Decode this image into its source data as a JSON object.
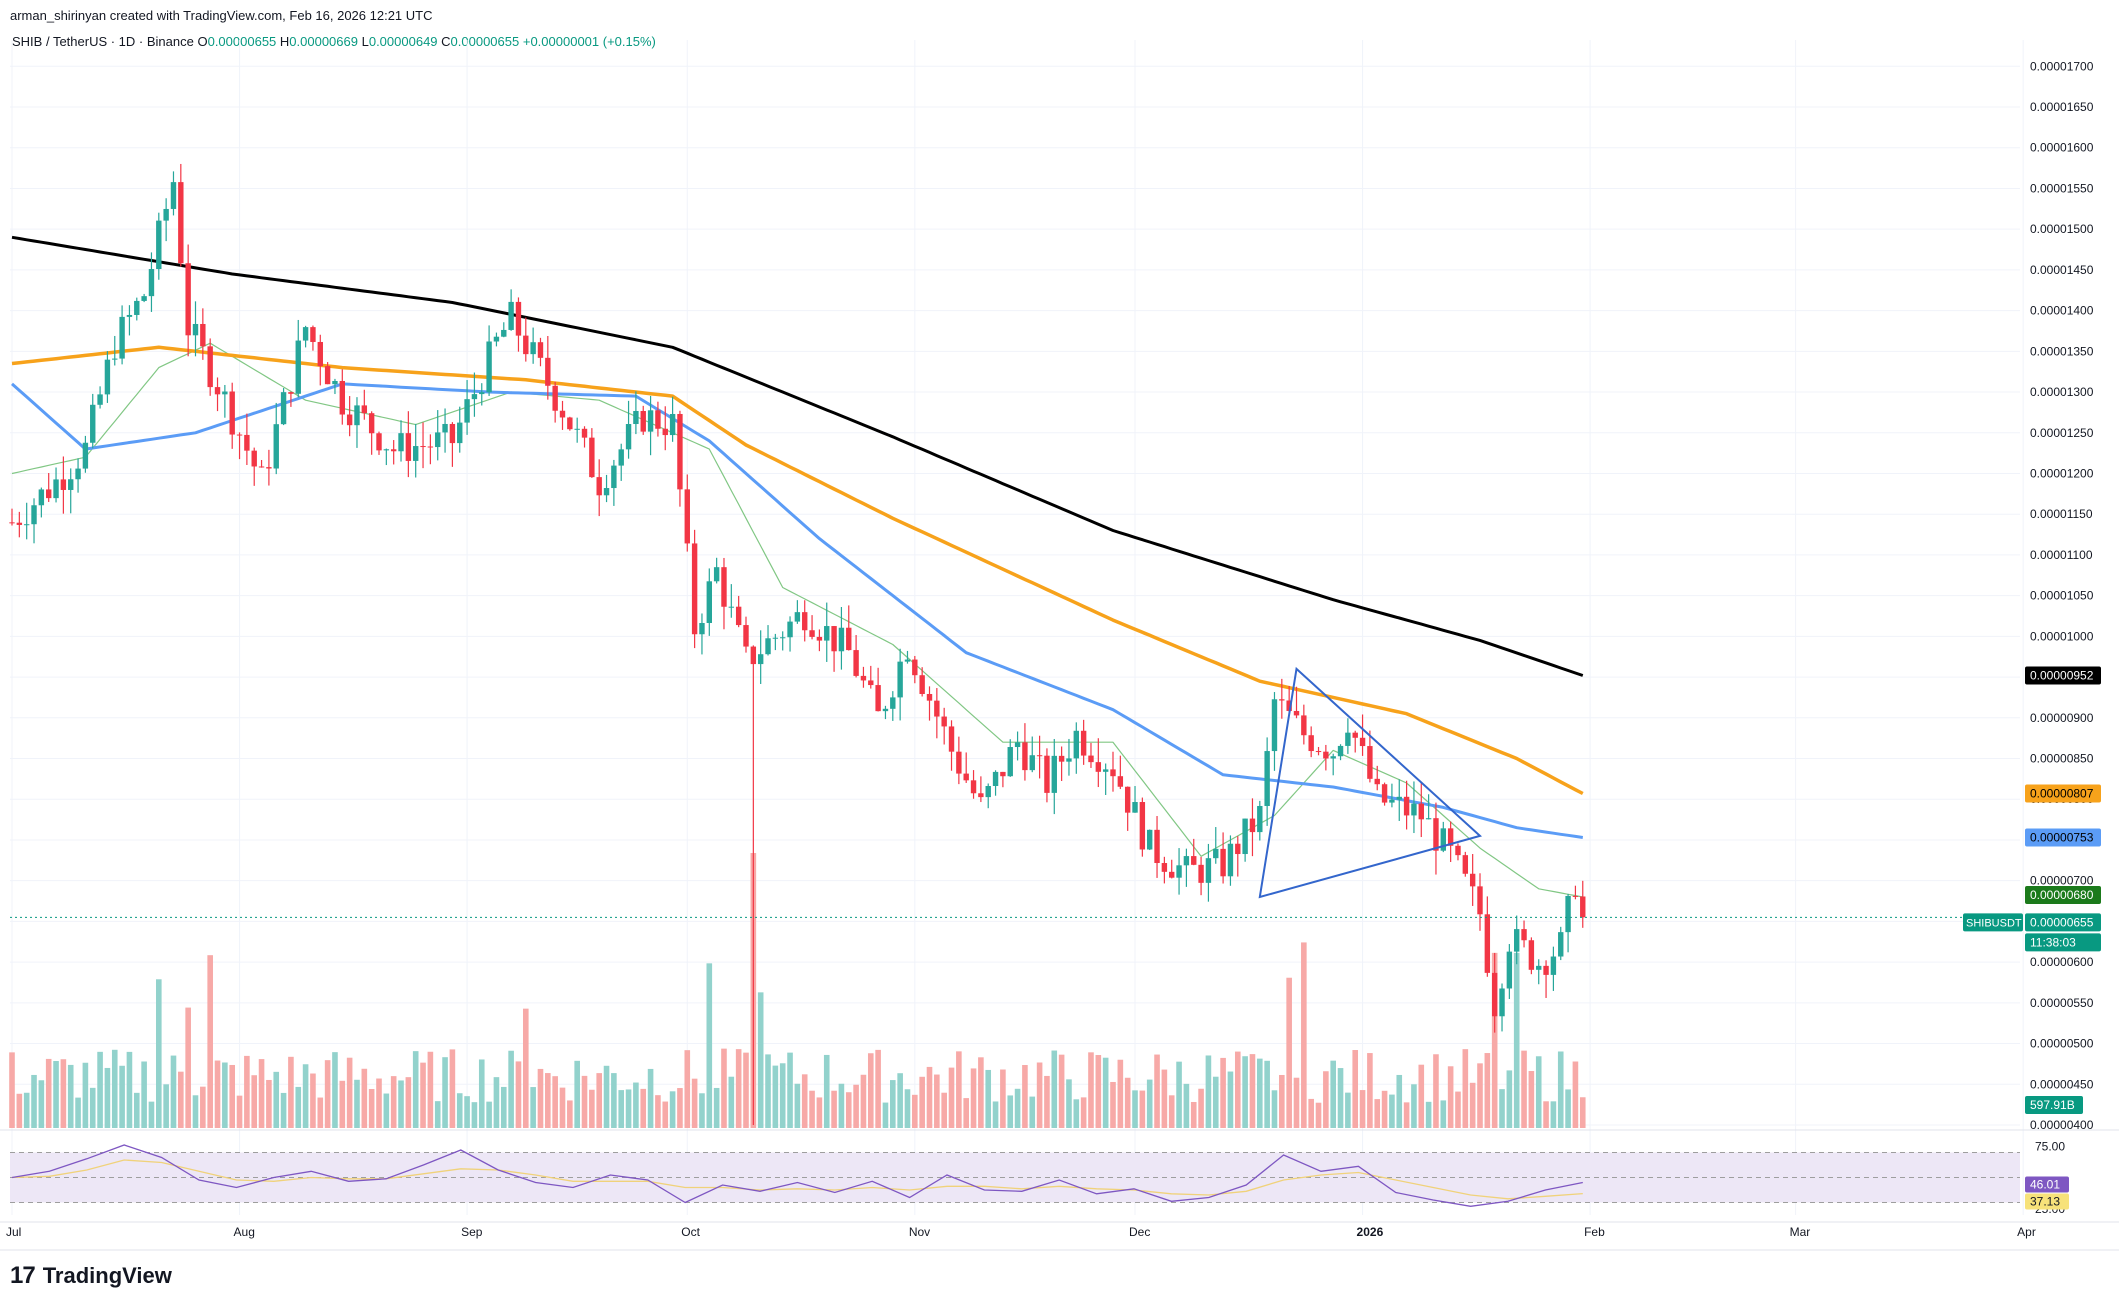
{
  "header": {
    "attribution": "arman_shirinyan created with TradingView.com, Feb 16, 2026 12:21 UTC",
    "symbol": "SHIB / TetherUS · 1D · Binance",
    "ohlc": {
      "open_label": "O",
      "open": "0.00000655",
      "high_label": "H",
      "high": "0.00000669",
      "low_label": "L",
      "low": "0.00000649",
      "close_label": "C",
      "close": "0.00000655",
      "change": "+0.00000001 (+0.15%)"
    }
  },
  "footer": {
    "logo_mark": "17",
    "logo_text": "TradingView"
  },
  "colors": {
    "up": "#089981",
    "up_soft": "#26a69a",
    "down": "#f23645",
    "vol_up": "#92d2cc",
    "vol_down": "#f7a9a7",
    "ma200": "#000000",
    "ma100": "#f7a21b",
    "ma50": "#5b9cf6",
    "ma20": "#81c784",
    "triangle": "#3366cc",
    "rsi": "#7e57c2",
    "rsi_ma": "#f0d27a",
    "rsi_band": "#ede7f6"
  },
  "chart_data": {
    "type": "candlestick",
    "title": "SHIB / TetherUS · 1D · Binance",
    "x_labels": [
      "Jul",
      "Aug",
      "Sep",
      "Oct",
      "Nov",
      "Dec",
      "2026",
      "Feb",
      "Mar",
      "Apr"
    ],
    "y_ticks": [
      "0.00001700",
      "0.00001650",
      "0.00001600",
      "0.00001550",
      "0.00001500",
      "0.00001450",
      "0.00001400",
      "0.00001350",
      "0.00001300",
      "0.00001250",
      "0.00001200",
      "0.00001150",
      "0.00001100",
      "0.00001050",
      "0.00001000",
      "0.00000950",
      "0.00000900",
      "0.00000850",
      "0.00000800",
      "0.00000750",
      "0.00000700",
      "0.00000650",
      "0.00000600",
      "0.00000550",
      "0.00000500",
      "0.00000450",
      "0.00000400"
    ],
    "y_range": [
      4e-06,
      1.72e-05
    ],
    "price_waypoints": [
      {
        "d": 0,
        "p": 1.14e-05
      },
      {
        "d": 6,
        "p": 1.19e-05
      },
      {
        "d": 10,
        "p": 1.23e-05
      },
      {
        "d": 14,
        "p": 1.36e-05
      },
      {
        "d": 18,
        "p": 1.42e-05
      },
      {
        "d": 22,
        "p": 1.56e-05
      },
      {
        "d": 24,
        "p": 1.38e-05
      },
      {
        "d": 28,
        "p": 1.31e-05
      },
      {
        "d": 34,
        "p": 1.19e-05
      },
      {
        "d": 40,
        "p": 1.38e-05
      },
      {
        "d": 45,
        "p": 1.29e-05
      },
      {
        "d": 52,
        "p": 1.23e-05
      },
      {
        "d": 60,
        "p": 1.24e-05
      },
      {
        "d": 66,
        "p": 1.36e-05
      },
      {
        "d": 68,
        "p": 1.39e-05
      },
      {
        "d": 75,
        "p": 1.28e-05
      },
      {
        "d": 80,
        "p": 1.19e-05
      },
      {
        "d": 86,
        "p": 1.27e-05
      },
      {
        "d": 90,
        "p": 1.26e-05
      },
      {
        "d": 93,
        "p": 1.01e-05
      },
      {
        "d": 96,
        "p": 1.08e-05
      },
      {
        "d": 100,
        "p": 9.7e-06
      },
      {
        "d": 108,
        "p": 1.03e-05
      },
      {
        "d": 114,
        "p": 9.8e-06
      },
      {
        "d": 118,
        "p": 9e-06
      },
      {
        "d": 122,
        "p": 9.9e-06
      },
      {
        "d": 128,
        "p": 8.6e-06
      },
      {
        "d": 132,
        "p": 7.9e-06
      },
      {
        "d": 137,
        "p": 8.7e-06
      },
      {
        "d": 141,
        "p": 8.2e-06
      },
      {
        "d": 145,
        "p": 8.8e-06
      },
      {
        "d": 150,
        "p": 8.4e-06
      },
      {
        "d": 155,
        "p": 7.4e-06
      },
      {
        "d": 160,
        "p": 7.1e-06
      },
      {
        "d": 165,
        "p": 7.2e-06
      },
      {
        "d": 170,
        "p": 7.8e-06
      },
      {
        "d": 172,
        "p": 9.2e-06
      },
      {
        "d": 176,
        "p": 8.8e-06
      },
      {
        "d": 180,
        "p": 8.6e-06
      },
      {
        "d": 182,
        "p": 9e-06
      },
      {
        "d": 186,
        "p": 8e-06
      },
      {
        "d": 192,
        "p": 7.8e-06
      },
      {
        "d": 196,
        "p": 7.3e-06
      },
      {
        "d": 200,
        "p": 6.6e-06
      },
      {
        "d": 202,
        "p": 5.5e-06
      },
      {
        "d": 204,
        "p": 6.3e-06
      },
      {
        "d": 208,
        "p": 6e-06
      },
      {
        "d": 211,
        "p": 6.2e-06
      },
      {
        "d": 213,
        "p": 7e-06
      },
      {
        "d": 214,
        "p": 6.55e-06
      }
    ],
    "oct10_wick_low": 4e-06,
    "ma200": [
      {
        "d": 0,
        "p": 1.49e-05
      },
      {
        "d": 30,
        "p": 1.445e-05
      },
      {
        "d": 60,
        "p": 1.41e-05
      },
      {
        "d": 90,
        "p": 1.355e-05
      },
      {
        "d": 120,
        "p": 1.245e-05
      },
      {
        "d": 150,
        "p": 1.13e-05
      },
      {
        "d": 180,
        "p": 1.045e-05
      },
      {
        "d": 200,
        "p": 9.95e-06
      },
      {
        "d": 214,
        "p": 9.52e-06
      }
    ],
    "ma100": [
      {
        "d": 0,
        "p": 1.335e-05
      },
      {
        "d": 20,
        "p": 1.355e-05
      },
      {
        "d": 45,
        "p": 1.33e-05
      },
      {
        "d": 70,
        "p": 1.315e-05
      },
      {
        "d": 90,
        "p": 1.295e-05
      },
      {
        "d": 100,
        "p": 1.235e-05
      },
      {
        "d": 120,
        "p": 1.145e-05
      },
      {
        "d": 150,
        "p": 1.02e-05
      },
      {
        "d": 170,
        "p": 9.45e-06
      },
      {
        "d": 190,
        "p": 9.05e-06
      },
      {
        "d": 205,
        "p": 8.5e-06
      },
      {
        "d": 214,
        "p": 8.07e-06
      }
    ],
    "ma50": [
      {
        "d": 0,
        "p": 1.31e-05
      },
      {
        "d": 10,
        "p": 1.23e-05
      },
      {
        "d": 25,
        "p": 1.25e-05
      },
      {
        "d": 45,
        "p": 1.31e-05
      },
      {
        "d": 65,
        "p": 1.3e-05
      },
      {
        "d": 85,
        "p": 1.295e-05
      },
      {
        "d": 95,
        "p": 1.24e-05
      },
      {
        "d": 110,
        "p": 1.12e-05
      },
      {
        "d": 130,
        "p": 9.8e-06
      },
      {
        "d": 150,
        "p": 9.1e-06
      },
      {
        "d": 165,
        "p": 8.3e-06
      },
      {
        "d": 180,
        "p": 8.15e-06
      },
      {
        "d": 195,
        "p": 7.9e-06
      },
      {
        "d": 205,
        "p": 7.65e-06
      },
      {
        "d": 214,
        "p": 7.53e-06
      }
    ],
    "ma20": [
      {
        "d": 0,
        "p": 1.2e-05
      },
      {
        "d": 10,
        "p": 1.22e-05
      },
      {
        "d": 20,
        "p": 1.33e-05
      },
      {
        "d": 27,
        "p": 1.36e-05
      },
      {
        "d": 40,
        "p": 1.29e-05
      },
      {
        "d": 55,
        "p": 1.26e-05
      },
      {
        "d": 68,
        "p": 1.3e-05
      },
      {
        "d": 80,
        "p": 1.29e-05
      },
      {
        "d": 95,
        "p": 1.23e-05
      },
      {
        "d": 105,
        "p": 1.06e-05
      },
      {
        "d": 120,
        "p": 9.9e-06
      },
      {
        "d": 135,
        "p": 8.7e-06
      },
      {
        "d": 150,
        "p": 8.7e-06
      },
      {
        "d": 162,
        "p": 7.3e-06
      },
      {
        "d": 172,
        "p": 7.8e-06
      },
      {
        "d": 180,
        "p": 8.6e-06
      },
      {
        "d": 190,
        "p": 8.2e-06
      },
      {
        "d": 200,
        "p": 7.4e-06
      },
      {
        "d": 208,
        "p": 6.9e-06
      },
      {
        "d": 214,
        "p": 6.8e-06
      }
    ],
    "triangle": [
      {
        "d": 170,
        "p": 6.8e-06
      },
      {
        "d": 175,
        "p": 9.6e-06
      },
      {
        "d": 200,
        "p": 7.55e-06
      }
    ],
    "price_labels": [
      {
        "text": "0.00000952",
        "price": 9.52e-06,
        "bg": "#000000",
        "fg": "#ffffff"
      },
      {
        "text": "0.00000807",
        "price": 8.07e-06,
        "bg": "#f7a21b",
        "fg": "#000000"
      },
      {
        "text": "0.00000753",
        "price": 7.53e-06,
        "bg": "#5b9cf6",
        "fg": "#000000"
      },
      {
        "text": "0.00000680",
        "price": 6.8e-06,
        "bg": "#1b7a1b",
        "fg": "#ffffff"
      },
      {
        "text": "0.00000655",
        "price": 6.55e-06,
        "bg": "#089981",
        "fg": "#ffffff"
      }
    ],
    "last_price_symbol": "SHIBUSDT",
    "countdown": "11:38:03",
    "volume_label": "597.91B",
    "rsi": {
      "ticks": [
        "75.00",
        "25.00"
      ],
      "levels": [
        70,
        50,
        30
      ],
      "values": [
        50.0,
        55.0,
        65.0,
        76.0,
        66.0,
        48.0,
        42.0,
        50.0,
        55.0,
        47.0,
        49.0,
        60.0,
        72.0,
        56.0,
        46.0,
        42.0,
        52.0,
        48.0,
        30.0,
        44.0,
        39.0,
        46.0,
        38.0,
        47.0,
        34.0,
        52.0,
        40.0,
        39.0,
        48.0,
        37.0,
        41.0,
        31.0,
        34.0,
        44.0,
        68.0,
        55.0,
        59.0,
        38.0,
        32.0,
        27.0,
        31.0,
        40.0,
        46.01
      ],
      "rsi_ma_values": [
        50.0,
        51.0,
        56.0,
        64.0,
        62.0,
        55.0,
        48.0,
        47.0,
        50.0,
        49.0,
        49.0,
        53.0,
        57.0,
        56.0,
        52.0,
        47.0,
        47.0,
        47.0,
        42.0,
        42.0,
        40.0,
        41.0,
        40.0,
        42.0,
        40.0,
        43.0,
        43.0,
        41.0,
        43.0,
        41.0,
        40.0,
        37.0,
        36.0,
        39.0,
        48.0,
        52.0,
        54.0,
        48.0,
        42.0,
        36.0,
        33.0,
        35.0,
        37.13
      ],
      "value_label": "46.01",
      "ma_label": "37.13"
    }
  }
}
